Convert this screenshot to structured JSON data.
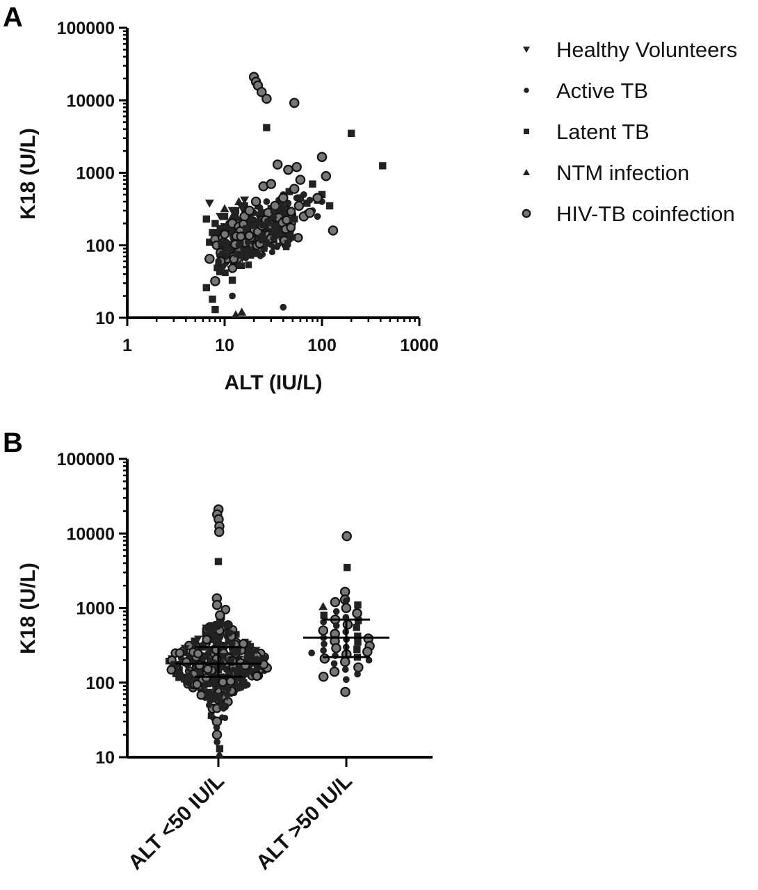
{
  "chart_data": [
    {
      "panel": "A",
      "type": "scatter",
      "xlabel": "ALT (IU/L)",
      "ylabel": "K18 (U/L)",
      "xscale": "log",
      "yscale": "log",
      "xlim": [
        1,
        1000
      ],
      "ylim": [
        10,
        100000
      ],
      "xticks": [
        "1",
        "10",
        "100",
        "1000"
      ],
      "yticks": [
        "10",
        "100",
        "1000",
        "10000",
        "100000"
      ],
      "grid": false,
      "legend": {
        "placement": "right",
        "entries": [
          {
            "label": "Healthy Volunteers",
            "marker": "triangle-down"
          },
          {
            "label": "Active TB",
            "marker": "dot"
          },
          {
            "label": "Latent TB",
            "marker": "square"
          },
          {
            "label": "NTM infection",
            "marker": "triangle-up"
          },
          {
            "label": "HIV-TB coinfection",
            "marker": "circle-open"
          }
        ]
      },
      "series": [
        {
          "name": "Healthy Volunteers",
          "marker": "triangle-down",
          "x": [
            7,
            9,
            10,
            11,
            12,
            14,
            16,
            18,
            20,
            22,
            25,
            8,
            13,
            15
          ],
          "y": [
            380,
            250,
            180,
            160,
            300,
            140,
            420,
            200,
            120,
            260,
            180,
            150,
            220,
            330
          ]
        },
        {
          "name": "Active TB",
          "marker": "dot",
          "x": [
            8,
            9,
            10,
            11,
            12,
            13,
            14,
            15,
            16,
            17,
            18,
            19,
            20,
            21,
            22,
            23,
            24,
            25,
            27,
            28,
            30,
            32,
            34,
            36,
            38,
            40,
            42,
            45,
            48,
            50,
            55,
            60,
            65,
            70,
            75,
            80,
            90,
            100,
            12,
            40,
            9,
            14,
            17,
            26,
            33,
            44
          ],
          "y": [
            140,
            120,
            180,
            200,
            160,
            250,
            130,
            220,
            300,
            170,
            240,
            190,
            280,
            150,
            210,
            330,
            260,
            180,
            400,
            230,
            300,
            350,
            200,
            420,
            260,
            500,
            310,
            380,
            270,
            600,
            450,
            350,
            500,
            280,
            420,
            300,
            250,
            400,
            20,
            14,
            90,
            110,
            95,
            160,
            130,
            230
          ]
        },
        {
          "name": "Latent TB",
          "marker": "square",
          "x": [
            6.5,
            7,
            7.5,
            8,
            8.5,
            9,
            10,
            11,
            12,
            13,
            14,
            15,
            16,
            17,
            18,
            19,
            20,
            22,
            24,
            26,
            28,
            30,
            32,
            35,
            38,
            42,
            46,
            50,
            60,
            70,
            80,
            90,
            100,
            120,
            6.5,
            7.5,
            8,
            12,
            27,
            200,
            420
          ],
          "y": [
            230,
            110,
            150,
            200,
            130,
            170,
            250,
            160,
            190,
            300,
            140,
            220,
            350,
            180,
            260,
            150,
            200,
            170,
            280,
            240,
            190,
            320,
            210,
            260,
            380,
            300,
            550,
            250,
            450,
            380,
            700,
            420,
            500,
            350,
            26,
            18,
            13,
            33,
            4200,
            3500,
            1250
          ]
        },
        {
          "name": "NTM infection",
          "marker": "triangle-up",
          "x": [
            9,
            10,
            12,
            14,
            16,
            18,
            22,
            28,
            35,
            13,
            15
          ],
          "y": [
            160,
            320,
            250,
            400,
            180,
            280,
            350,
            200,
            300,
            11,
            12
          ]
        },
        {
          "name": "HIV-TB coinfection",
          "marker": "circle-open",
          "x": [
            7,
            8,
            9,
            10,
            11,
            12,
            13,
            14,
            15,
            16,
            17,
            18,
            19,
            20,
            21,
            22,
            24,
            26,
            28,
            30,
            33,
            36,
            40,
            44,
            48,
            52,
            58,
            65,
            75,
            90,
            110,
            130,
            8,
            10,
            20,
            21,
            22,
            24,
            27,
            52,
            35,
            100,
            45,
            55,
            60,
            25,
            30
          ],
          "y": [
            65,
            120,
            55,
            150,
            90,
            200,
            70,
            180,
            110,
            250,
            140,
            300,
            95,
            170,
            400,
            130,
            220,
            160,
            280,
            190,
            350,
            240,
            450,
            300,
            200,
            600,
            350,
            250,
            280,
            450,
            900,
            160,
            32,
            60,
            21000,
            18000,
            16000,
            13000,
            10500,
            9200,
            1300,
            1650,
            1100,
            1200,
            800,
            650,
            700
          ]
        }
      ]
    },
    {
      "panel": "B",
      "type": "scatter",
      "xlabel": "",
      "ylabel": "K18 (U/L)",
      "yscale": "log",
      "ylim": [
        10,
        100000
      ],
      "yticks": [
        "10",
        "100",
        "1000",
        "10000",
        "100000"
      ],
      "categories": [
        "ALT <50 IU/L",
        "ALT >50 IU/L"
      ],
      "grid": false,
      "median": [
        180,
        400
      ],
      "iqr": [
        [
          120,
          300
        ],
        [
          220,
          700
        ]
      ],
      "groups": [
        {
          "category": "ALT <50 IU/L",
          "highlights": [
            {
              "y": 21000,
              "marker": "circle-open"
            },
            {
              "y": 18000,
              "marker": "circle-open"
            },
            {
              "y": 15500,
              "marker": "circle-open"
            },
            {
              "y": 12500,
              "marker": "circle-open"
            },
            {
              "y": 10500,
              "marker": "circle-open"
            },
            {
              "y": 4200,
              "marker": "square"
            },
            {
              "y": 1350,
              "marker": "circle-open"
            },
            {
              "y": 1100,
              "marker": "circle-open"
            },
            {
              "y": 800,
              "marker": "circle-open"
            },
            {
              "y": 30,
              "marker": "circle-open"
            },
            {
              "y": 25,
              "marker": "dot"
            },
            {
              "y": 20,
              "marker": "circle-open"
            },
            {
              "y": 16,
              "marker": "dot"
            },
            {
              "y": 13,
              "marker": "square"
            },
            {
              "y": 11,
              "marker": "triangle-up"
            }
          ]
        },
        {
          "category": "ALT >50 IU/L",
          "values": [
            9200,
            3500,
            1650,
            1300,
            1250,
            1200,
            1100,
            1050,
            1000,
            900,
            850,
            800,
            750,
            700,
            680,
            650,
            600,
            580,
            550,
            500,
            480,
            450,
            420,
            400,
            390,
            380,
            360,
            350,
            330,
            310,
            300,
            290,
            280,
            270,
            260,
            250,
            240,
            230,
            220,
            210,
            200,
            190,
            180,
            160,
            150,
            140,
            130,
            120,
            110,
            75
          ],
          "markers": [
            "circle-open",
            "square",
            "circle-open",
            "circle-open",
            "dot",
            "circle-open",
            "square",
            "triangle-up",
            "circle-open",
            "dot",
            "circle-open",
            "square",
            "dot",
            "circle-open",
            "square",
            "dot",
            "circle-open",
            "dot",
            "square",
            "circle-open",
            "dot",
            "circle-open",
            "square",
            "dot",
            "circle-open",
            "dot",
            "circle-open",
            "square",
            "dot",
            "circle-open",
            "dot",
            "circle-open",
            "square",
            "dot",
            "circle-open",
            "dot",
            "circle-open",
            "dot",
            "square",
            "circle-open",
            "dot",
            "circle-open",
            "dot",
            "circle-open",
            "dot",
            "circle-open",
            "dot",
            "circle-open",
            "dot",
            "circle-open"
          ]
        }
      ]
    }
  ]
}
